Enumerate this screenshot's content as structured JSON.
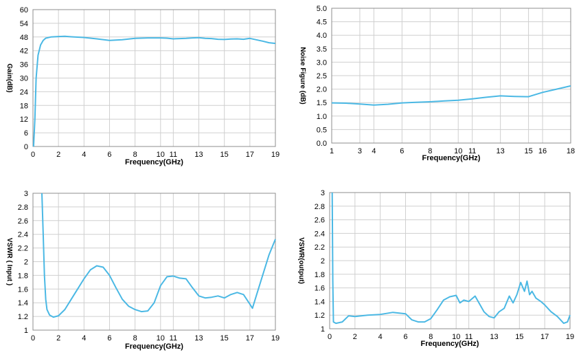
{
  "colors": {
    "series": "#4ab8e4",
    "grid": "#cfcfcf",
    "axis": "#8c8c8c"
  },
  "chart_data": [
    {
      "type": "line",
      "xlabel": "Frequency(GHz)",
      "ylabel": "Gain(dB)",
      "xlim": [
        0,
        19
      ],
      "ylim": [
        0,
        60
      ],
      "xticks": [
        0,
        2,
        4,
        6,
        8,
        10,
        11,
        13,
        15,
        17,
        19
      ],
      "yticks": [
        0,
        6,
        12,
        18,
        24,
        30,
        36,
        42,
        48,
        54,
        60
      ],
      "ytick_labels": [
        "0",
        "6",
        "12",
        "18",
        "24",
        "30",
        "36",
        "42",
        "48",
        "54",
        "60"
      ],
      "grid": true,
      "series": [
        {
          "name": "Gain",
          "x": [
            0.05,
            0.15,
            0.25,
            0.4,
            0.6,
            0.8,
            1.0,
            1.4,
            2.0,
            2.5,
            3.0,
            4.0,
            5.0,
            6.0,
            7.0,
            8.0,
            9.0,
            10.0,
            10.5,
            11.0,
            11.5,
            12.0,
            12.5,
            13.0,
            13.5,
            14.0,
            14.5,
            15.0,
            15.5,
            16.0,
            16.5,
            17.0,
            17.5,
            18.0,
            18.5,
            19.0
          ],
          "y": [
            0,
            12,
            30,
            40,
            44.5,
            46.5,
            47.5,
            48,
            48.2,
            48.3,
            48.1,
            47.8,
            47.2,
            46.5,
            46.8,
            47.4,
            47.6,
            47.6,
            47.5,
            47.2,
            47.3,
            47.4,
            47.6,
            47.7,
            47.4,
            47.3,
            47.0,
            46.9,
            47.1,
            47.2,
            47.0,
            47.4,
            46.8,
            46.2,
            45.5,
            45.2
          ]
        }
      ]
    },
    {
      "type": "line",
      "xlabel": "Frequency(GHz)",
      "ylabel": "Noise Figure  (dB)",
      "xlim": [
        1,
        18
      ],
      "ylim": [
        0,
        5
      ],
      "xticks": [
        1,
        3,
        4,
        6,
        8,
        10,
        11,
        13,
        15,
        16,
        18
      ],
      "yticks": [
        0,
        0.5,
        1,
        1.5,
        2,
        2.5,
        3,
        3.5,
        4,
        4.5,
        5
      ],
      "ytick_labels": [
        "0.0",
        "0.5",
        "1.0",
        "1.5",
        "2.0",
        "2.5",
        "3.0",
        "3.5",
        "4.0",
        "4.5",
        "5.0"
      ],
      "grid": true,
      "series": [
        {
          "name": "Noise Figure",
          "x": [
            1,
            2,
            3,
            4,
            5,
            6,
            7,
            8,
            9,
            10,
            11,
            12,
            13,
            14,
            15,
            16,
            17,
            18
          ],
          "y": [
            1.49,
            1.48,
            1.45,
            1.41,
            1.44,
            1.49,
            1.51,
            1.53,
            1.56,
            1.59,
            1.64,
            1.7,
            1.75,
            1.73,
            1.72,
            1.88,
            2.0,
            2.12
          ]
        }
      ]
    },
    {
      "type": "line",
      "xlabel": "Frequency(GHz)",
      "ylabel": "VSWR ( Input )",
      "xlim": [
        0,
        19
      ],
      "ylim": [
        1,
        3
      ],
      "xticks": [
        0,
        2,
        4,
        6,
        8,
        10,
        11,
        13,
        15,
        17,
        19
      ],
      "yticks": [
        1,
        1.2,
        1.4,
        1.6,
        1.8,
        2,
        2.2,
        2.4,
        2.6,
        2.8,
        3
      ],
      "ytick_labels": [
        "1",
        "1.2",
        "1.4",
        "1.6",
        "1.8",
        "2",
        "2.2",
        "2.4",
        "2.6",
        "2.8",
        "3"
      ],
      "grid": true,
      "series": [
        {
          "name": "VSWR Input",
          "x": [
            0.7,
            0.8,
            0.9,
            1.0,
            1.1,
            1.3,
            1.6,
            2.0,
            2.5,
            3.0,
            3.5,
            4.0,
            4.5,
            5.0,
            5.5,
            6.0,
            6.5,
            7.0,
            7.5,
            8.0,
            8.5,
            9.0,
            9.5,
            10.0,
            10.5,
            11.0,
            11.5,
            12.0,
            12.5,
            13.0,
            13.5,
            14.0,
            14.5,
            15.0,
            15.5,
            16.0,
            16.5,
            17.0,
            17.2,
            17.5,
            18.0,
            18.5,
            19.0
          ],
          "y": [
            3.0,
            2.4,
            1.8,
            1.45,
            1.3,
            1.22,
            1.19,
            1.21,
            1.3,
            1.45,
            1.6,
            1.75,
            1.88,
            1.94,
            1.92,
            1.8,
            1.62,
            1.45,
            1.35,
            1.3,
            1.27,
            1.28,
            1.4,
            1.65,
            1.78,
            1.79,
            1.76,
            1.75,
            1.62,
            1.5,
            1.47,
            1.48,
            1.5,
            1.47,
            1.52,
            1.55,
            1.52,
            1.38,
            1.32,
            1.5,
            1.8,
            2.1,
            2.33
          ]
        }
      ]
    },
    {
      "type": "line",
      "xlabel": "Frequency(GHz)",
      "ylabel": "VSWR(output)",
      "xlim": [
        0,
        19
      ],
      "ylim": [
        1,
        3
      ],
      "xticks": [
        0,
        2,
        4,
        6,
        8,
        10,
        11,
        13,
        15,
        17,
        19
      ],
      "yticks": [
        1,
        1.2,
        1.4,
        1.6,
        1.8,
        2,
        2.2,
        2.4,
        2.6,
        2.8,
        3
      ],
      "ytick_labels": [
        "1",
        "1.2",
        "1.4",
        "1.6",
        "1.8",
        "2",
        "2.2",
        "2.4",
        "2.6",
        "2.8",
        "3"
      ],
      "grid": true,
      "series": [
        {
          "name": "VSWR Output",
          "x": [
            0.2,
            0.25,
            0.3,
            0.5,
            1.0,
            1.5,
            2.0,
            2.5,
            3.0,
            4.0,
            5.0,
            6.0,
            6.5,
            7.0,
            7.5,
            8.0,
            8.5,
            9.0,
            9.5,
            10.0,
            10.3,
            10.6,
            11.0,
            11.5,
            11.8,
            12.2,
            12.6,
            13.0,
            13.4,
            13.8,
            14.2,
            14.5,
            14.8,
            15.1,
            15.4,
            15.6,
            15.8,
            16.0,
            16.3,
            16.7,
            17.0,
            17.5,
            18.0,
            18.5,
            18.8,
            19.0
          ],
          "y": [
            3.0,
            1.7,
            1.1,
            1.08,
            1.1,
            1.19,
            1.18,
            1.19,
            1.2,
            1.21,
            1.24,
            1.22,
            1.13,
            1.1,
            1.1,
            1.15,
            1.28,
            1.42,
            1.47,
            1.49,
            1.38,
            1.42,
            1.4,
            1.48,
            1.38,
            1.25,
            1.18,
            1.16,
            1.25,
            1.3,
            1.48,
            1.38,
            1.5,
            1.68,
            1.55,
            1.7,
            1.5,
            1.55,
            1.45,
            1.4,
            1.35,
            1.25,
            1.18,
            1.08,
            1.1,
            1.2
          ]
        }
      ]
    }
  ]
}
